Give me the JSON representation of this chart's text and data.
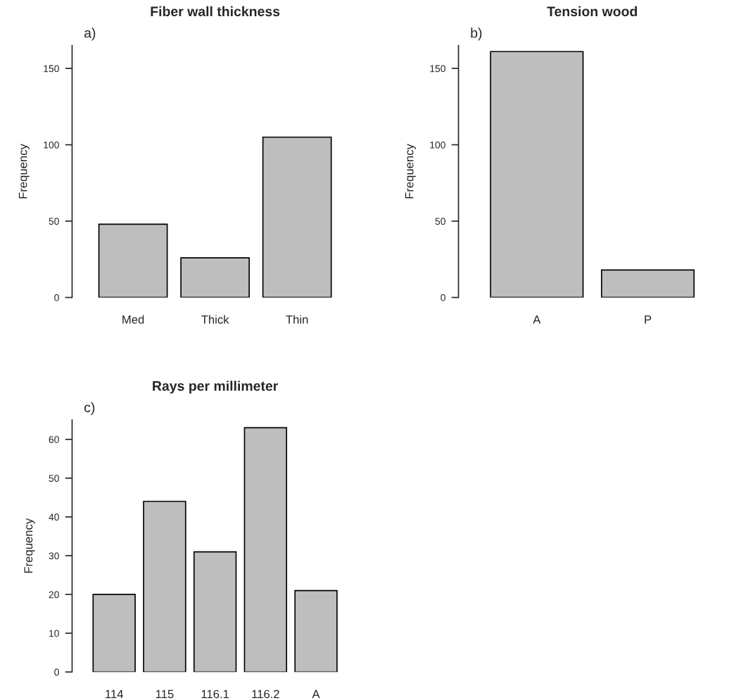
{
  "chart_data": [
    {
      "type": "bar",
      "title": "Fiber wall thickness",
      "ylabel": "Frequency",
      "categories": [
        "Med",
        "Thick",
        "Thin"
      ],
      "values": [
        48,
        26,
        105
      ],
      "color": "#bebebe",
      "ylim": [
        0,
        165
      ],
      "yticks": [
        0,
        50,
        100,
        150
      ],
      "annotations": [
        "a)"
      ]
    },
    {
      "type": "bar",
      "title": "Tension wood",
      "ylabel": "Frequency",
      "categories": [
        "A",
        "P"
      ],
      "values": [
        161,
        18
      ],
      "color": "#bebebe",
      "ylim": [
        0,
        165
      ],
      "yticks": [
        0,
        50,
        100,
        150
      ],
      "annotations": [
        "b)"
      ]
    },
    {
      "type": "bar",
      "title": "Rays per millimeter",
      "ylabel": "Frequency",
      "categories": [
        "114",
        "115",
        "116.1",
        "116.2",
        "A"
      ],
      "values": [
        20,
        44,
        31,
        63,
        21
      ],
      "color": "#bebebe",
      "ylim": [
        0,
        65
      ],
      "yticks": [
        0,
        10,
        20,
        30,
        40,
        50,
        60
      ],
      "annotations": [
        "c)"
      ]
    }
  ]
}
